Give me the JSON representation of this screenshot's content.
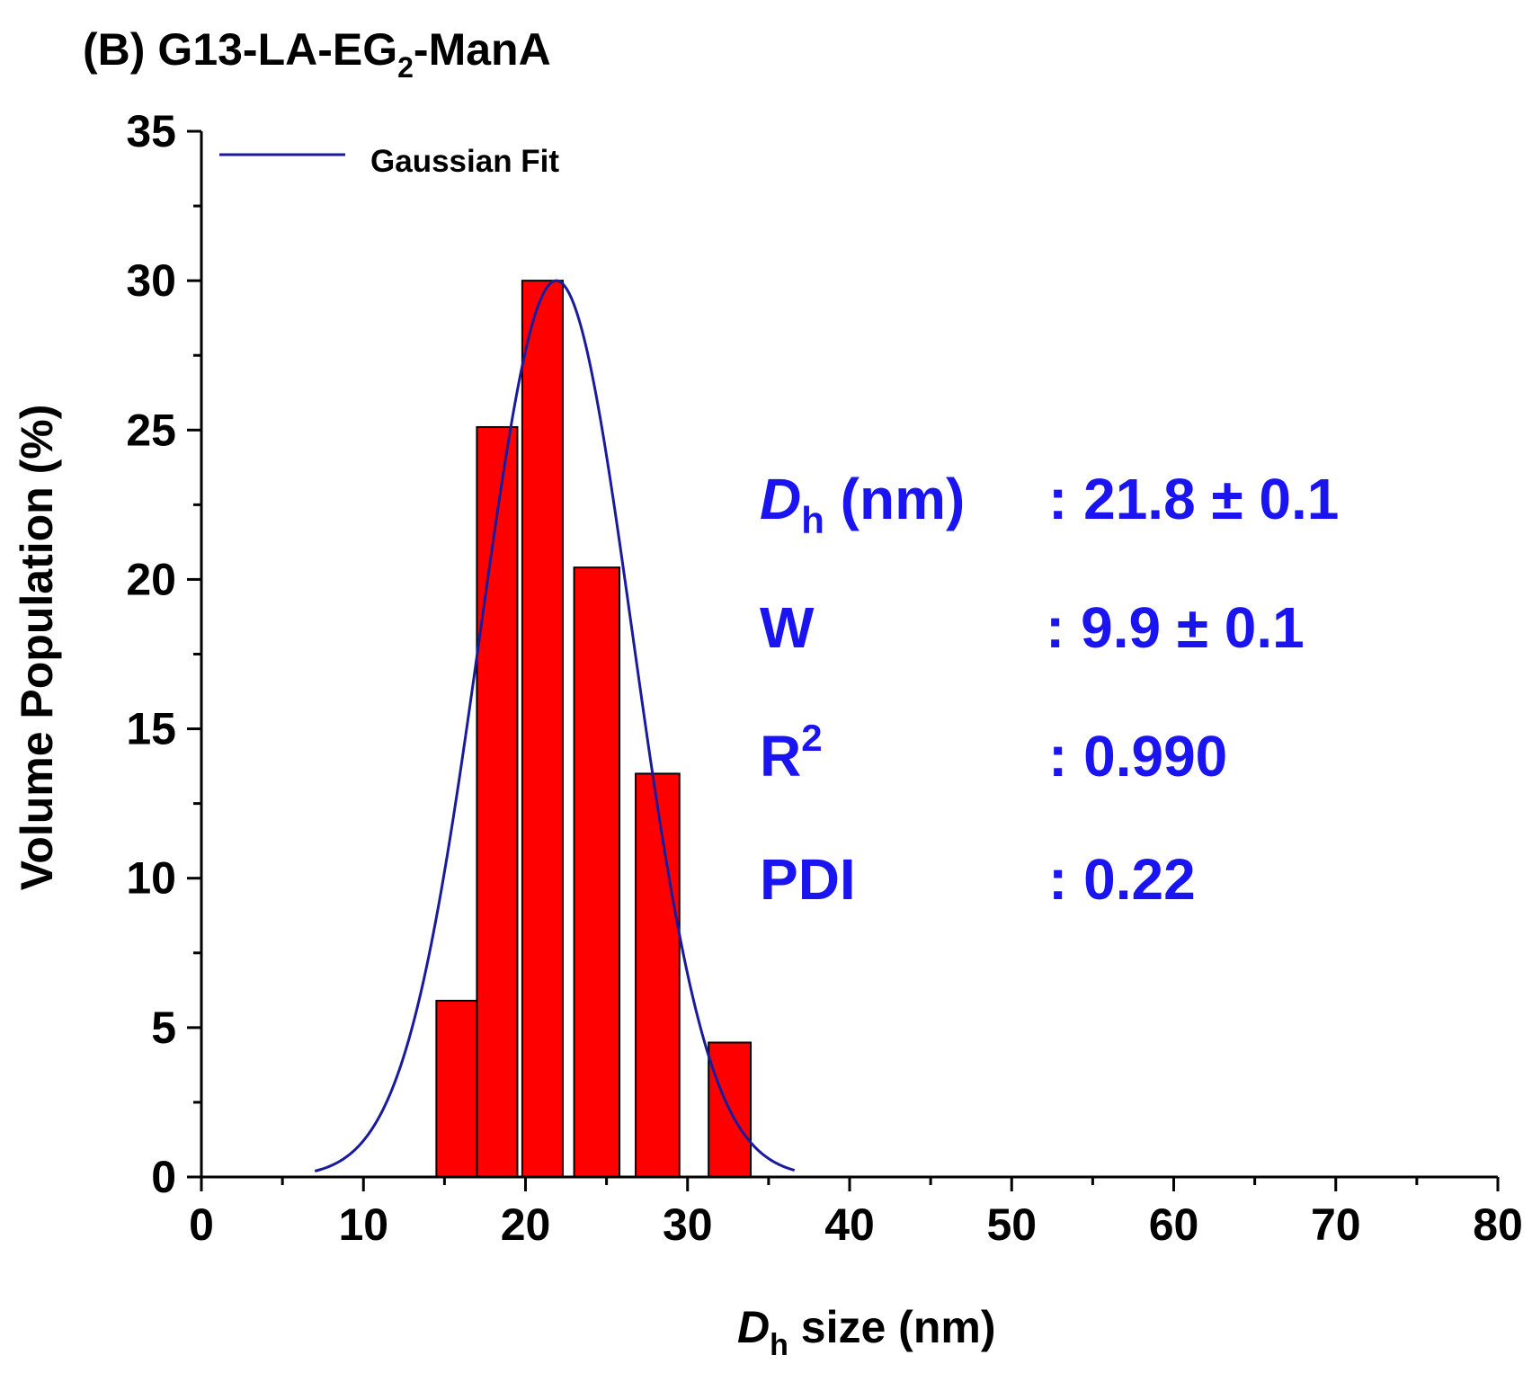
{
  "chart_data": {
    "type": "bar",
    "panel_label": "(B)",
    "title": {
      "main": "G13-LA-EG",
      "subscript": "2",
      "suffix": "-ManA"
    },
    "xlabel": {
      "italic": "D",
      "subscript": "h",
      "rest": " size (nm)"
    },
    "ylabel": "Volume Population (%)",
    "xlim": [
      0,
      80
    ],
    "ylim": [
      0,
      35
    ],
    "xticks": [
      0,
      10,
      20,
      30,
      40,
      50,
      60,
      70,
      80
    ],
    "yticks": [
      0,
      5,
      10,
      15,
      20,
      25,
      30,
      35
    ],
    "bars": [
      {
        "x0": 14.5,
        "x1": 17.0,
        "value": 5.9
      },
      {
        "x0": 17.0,
        "x1": 19.5,
        "value": 25.1
      },
      {
        "x0": 19.8,
        "x1": 22.3,
        "value": 30.0
      },
      {
        "x0": 23.0,
        "x1": 25.8,
        "value": 20.4
      },
      {
        "x0": 26.8,
        "x1": 29.5,
        "value": 13.5
      },
      {
        "x0": 31.3,
        "x1": 33.9,
        "value": 4.5
      }
    ],
    "fit": {
      "name": "Gaussian Fit",
      "center": 21.9,
      "amplitude": 30.0,
      "sigma": 4.7,
      "x_start": 7,
      "x_end": 36.6
    },
    "legend": {
      "label": "Gaussian Fit",
      "position": "top-left"
    },
    "stats": {
      "dh": {
        "symbol": "D",
        "sub": "h",
        "unit": " (nm)",
        "value": ": 21.8 ± 0.1"
      },
      "w": {
        "label": "W",
        "value": ": 9.9 ± 0.1"
      },
      "r2": {
        "label": "R",
        "sup": "2",
        "value": ": 0.990"
      },
      "pdi": {
        "label": "PDI",
        "value": ": 0.22"
      }
    }
  },
  "colors": {
    "bar_fill": "#ff0000",
    "bar_stroke": "#000000",
    "fit_line": "#1a1a9c",
    "stat_text": "#1a14f0",
    "axis": "#000000"
  }
}
